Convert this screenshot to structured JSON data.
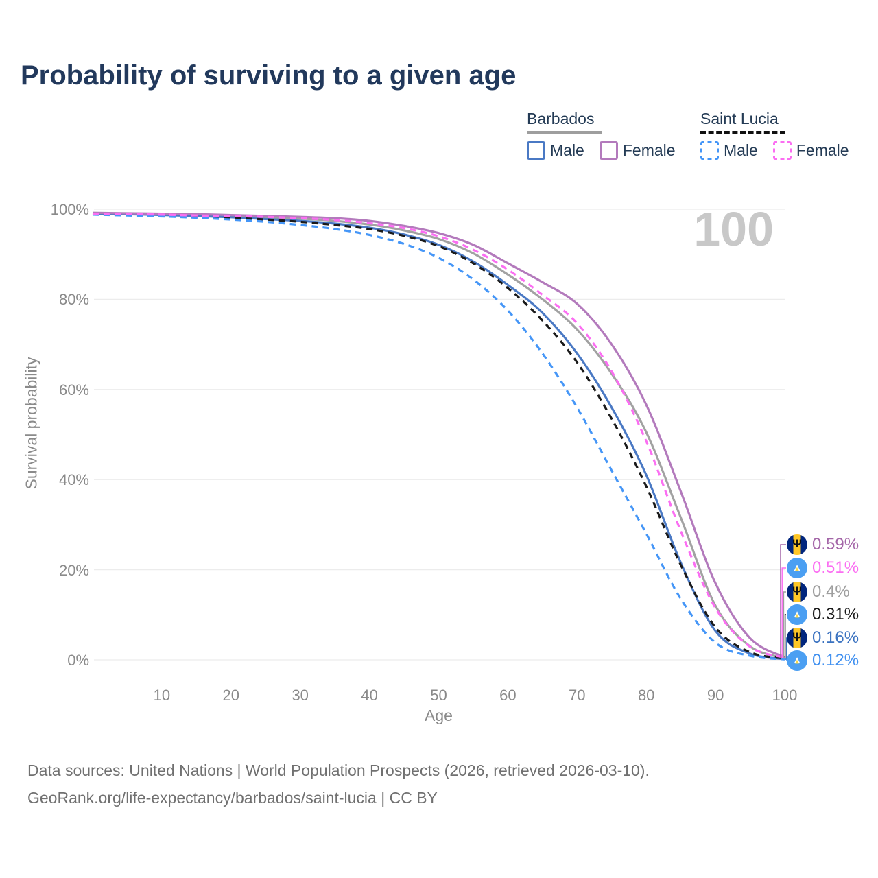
{
  "title": "Probability of surviving to a given age",
  "watermark": "100",
  "legend": {
    "groups": [
      {
        "label": "Barbados",
        "line_style": "solid",
        "line_color": "#9e9e9e",
        "items": [
          {
            "label": "Male",
            "swatch_color": "#4a79c4",
            "swatch_style": "solid"
          },
          {
            "label": "Female",
            "swatch_color": "#b37abc",
            "swatch_style": "solid"
          }
        ]
      },
      {
        "label": "Saint Lucia",
        "line_style": "dashed",
        "line_color": "#111111",
        "items": [
          {
            "label": "Male",
            "swatch_color": "#4596f7",
            "swatch_style": "dashed"
          },
          {
            "label": "Female",
            "swatch_color": "#fb6ef2",
            "swatch_style": "dashed"
          }
        ]
      }
    ]
  },
  "chart_data": {
    "type": "line",
    "title": "Probability of surviving to a given age",
    "xlabel": "Age",
    "ylabel": "Survival probability",
    "xlim": [
      0,
      100
    ],
    "ylim_pct": [
      0,
      100
    ],
    "grid": true,
    "legend_position": "top-right",
    "x_ticks": [
      10,
      20,
      30,
      40,
      50,
      60,
      70,
      80,
      90,
      100
    ],
    "y_ticks_pct": [
      0,
      20,
      40,
      60,
      80,
      100
    ],
    "y_tick_labels": [
      "0%",
      "20%",
      "40%",
      "60%",
      "80%",
      "100%"
    ],
    "x": [
      0,
      5,
      10,
      15,
      20,
      25,
      30,
      35,
      40,
      45,
      50,
      55,
      60,
      65,
      70,
      75,
      80,
      85,
      90,
      95,
      100
    ],
    "series": [
      {
        "name": "Barbados",
        "country": "Barbados",
        "sex": "Both",
        "color": "#a2a2a2",
        "dashed": false,
        "values_pct": [
          99.1,
          99.0,
          98.9,
          98.7,
          98.5,
          98.2,
          97.9,
          97.4,
          96.6,
          95.3,
          93.4,
          90.2,
          85.5,
          80.0,
          73.3,
          63.5,
          50.5,
          31.5,
          12.0,
          3.0,
          0.4
        ]
      },
      {
        "name": "Barbados Male",
        "country": "Barbados",
        "sex": "Male",
        "color": "#4a79c4",
        "dashed": false,
        "values_pct": [
          99.0,
          98.9,
          98.7,
          98.5,
          98.2,
          97.8,
          97.4,
          96.8,
          95.9,
          94.4,
          92.1,
          88.4,
          83.2,
          77.0,
          68.0,
          56.0,
          41.0,
          21.5,
          6.4,
          1.4,
          0.16
        ]
      },
      {
        "name": "Barbados Female",
        "country": "Barbados",
        "sex": "Female",
        "color": "#b37abc",
        "dashed": false,
        "values_pct": [
          99.2,
          99.1,
          99.0,
          98.9,
          98.7,
          98.5,
          98.3,
          98.0,
          97.4,
          96.3,
          94.7,
          92.1,
          88.0,
          83.8,
          79.0,
          70.0,
          56.6,
          37.3,
          17.0,
          4.8,
          0.59
        ]
      },
      {
        "name": "Saint Lucia",
        "country": "Saint Lucia",
        "sex": "Both",
        "color": "#1a1a1a",
        "dashed": true,
        "values_pct": [
          98.9,
          98.7,
          98.6,
          98.4,
          98.1,
          97.7,
          97.2,
          96.5,
          95.6,
          94.1,
          91.8,
          88.0,
          82.5,
          75.3,
          66.0,
          53.5,
          38.5,
          21.0,
          7.2,
          1.7,
          0.31
        ]
      },
      {
        "name": "Saint Lucia Male",
        "country": "Saint Lucia",
        "sex": "Male",
        "color": "#4596f7",
        "dashed": true,
        "values_pct": [
          98.8,
          98.6,
          98.4,
          98.1,
          97.7,
          97.2,
          96.5,
          95.6,
          94.3,
          92.3,
          89.2,
          84.4,
          77.5,
          68.0,
          56.0,
          42.0,
          28.0,
          13.5,
          3.8,
          0.9,
          0.12
        ]
      },
      {
        "name": "Saint Lucia Female",
        "country": "Saint Lucia",
        "sex": "Female",
        "color": "#fb6ef2",
        "dashed": true,
        "values_pct": [
          99.0,
          98.9,
          98.8,
          98.6,
          98.5,
          98.3,
          98.0,
          97.6,
          96.9,
          95.8,
          94.0,
          91.0,
          86.6,
          81.0,
          74.7,
          64.0,
          48.5,
          28.5,
          11.5,
          2.9,
          0.51
        ]
      }
    ]
  },
  "end_labels": [
    {
      "flag": "barbados",
      "text": "0.59%",
      "color": "#a466a8",
      "series_index": 2
    },
    {
      "flag": "saint-lucia",
      "text": "0.51%",
      "color": "#fb6ef2",
      "series_index": 5
    },
    {
      "flag": "barbados",
      "text": "0.4%",
      "color": "#9e9e9e",
      "series_index": 0
    },
    {
      "flag": "saint-lucia",
      "text": "0.31%",
      "color": "#1a1a1a",
      "series_index": 3
    },
    {
      "flag": "barbados",
      "text": "0.16%",
      "color": "#3a72c0",
      "series_index": 1
    },
    {
      "flag": "saint-lucia",
      "text": "0.12%",
      "color": "#4090f0",
      "series_index": 4
    }
  ],
  "flags": {
    "barbados": {
      "blue": "#01267d",
      "yellow": "#ffc726",
      "trident": "#111111",
      "trident_glyph": "Ψ"
    },
    "saint-lucia": {
      "blue": "#4b9ff2",
      "triangle_white": "#ffffff",
      "triangle_yellow": "#f6d64a",
      "triangle_glyph": "▲"
    }
  },
  "grid_color": "#ececec",
  "caption": {
    "line1": "Data sources: United Nations | World Population Prospects (2026, retrieved 2026-03-10).",
    "line2": "GeoRank.org/life-expectancy/barbados/saint-lucia | CC BY"
  }
}
